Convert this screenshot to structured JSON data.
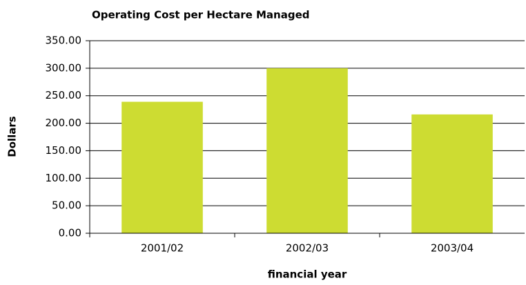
{
  "chart_data": {
    "type": "bar",
    "title": "Operating Cost per Hectare Managed",
    "x_label": "financial year",
    "y_label": "Dollars",
    "categories": [
      "2001/02",
      "2002/03",
      "2003/04"
    ],
    "values": [
      239,
      300,
      216
    ],
    "color": "#cddc32",
    "ylim": [
      0,
      350
    ],
    "yticks": [
      {
        "value": 0,
        "label": "0.00"
      },
      {
        "value": 50,
        "label": "50.00"
      },
      {
        "value": 100,
        "label": "100.00"
      },
      {
        "value": 150,
        "label": "150.00"
      },
      {
        "value": 200,
        "label": "200.00"
      },
      {
        "value": 250,
        "label": "250.00"
      },
      {
        "value": 300,
        "label": "300.00"
      },
      {
        "value": 350,
        "label": "350.00"
      }
    ],
    "grid": true
  }
}
